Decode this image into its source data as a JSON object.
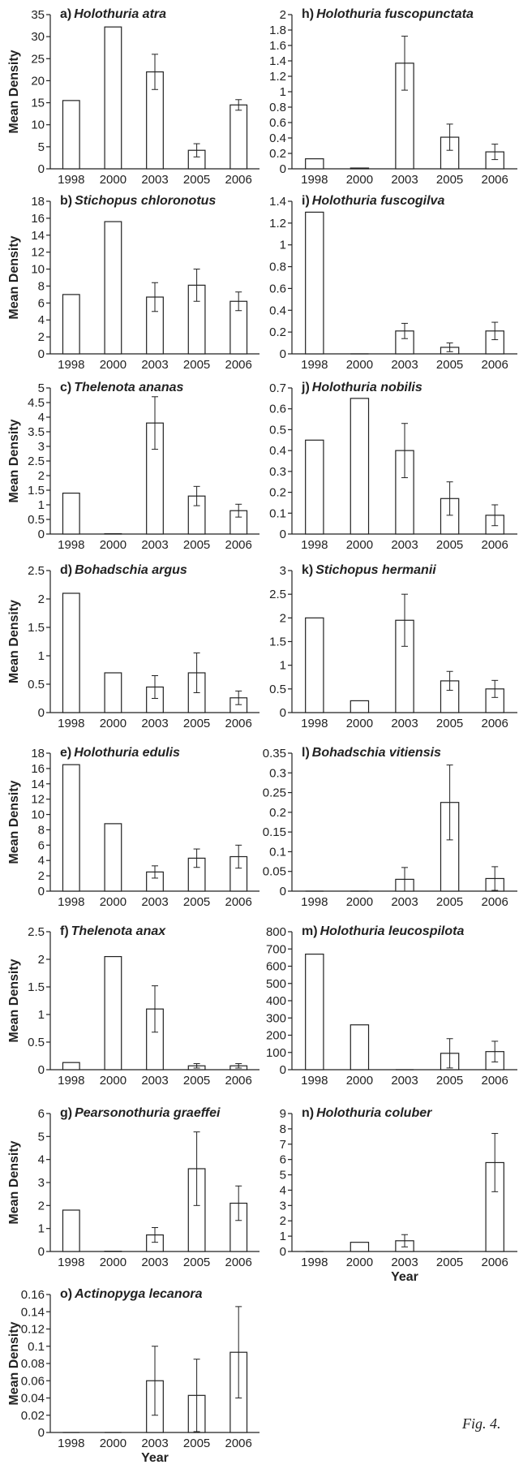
{
  "figure_caption": "Fig. 4.",
  "chart_data": [
    {
      "id": "a",
      "type": "bar",
      "panel_label": "a)",
      "title": "Holothuria atra",
      "ylabel": "Mean Density",
      "xlabel": "",
      "categories": [
        "1998",
        "2000",
        "2003",
        "2005",
        "2006"
      ],
      "values": [
        15.5,
        32.2,
        22.0,
        4.2,
        14.5
      ],
      "errors": [
        0,
        0,
        4.0,
        1.5,
        1.2
      ],
      "ylim": [
        0,
        35
      ],
      "yticks": [
        "0",
        "5",
        "10",
        "15",
        "20",
        "25",
        "30",
        "35"
      ]
    },
    {
      "id": "h",
      "type": "bar",
      "panel_label": "h)",
      "title": "Holothuria fuscopunctata",
      "ylabel": "",
      "xlabel": "",
      "categories": [
        "1998",
        "2000",
        "2003",
        "2005",
        "2006"
      ],
      "values": [
        0.13,
        0.01,
        1.37,
        0.41,
        0.22
      ],
      "errors": [
        0,
        0,
        0.35,
        0.17,
        0.1
      ],
      "ylim": [
        0,
        2
      ],
      "yticks": [
        "0",
        "0.2",
        "0.4",
        "0.6",
        "0.8",
        "1",
        "1.2",
        "1.4",
        "1.6",
        "1.8",
        "2"
      ]
    },
    {
      "id": "b",
      "type": "bar",
      "panel_label": "b)",
      "title": "Stichopus chloronotus",
      "ylabel": "Mean Density",
      "xlabel": "",
      "categories": [
        "1998",
        "2000",
        "2003",
        "2005",
        "2006"
      ],
      "values": [
        7.0,
        15.6,
        6.7,
        8.1,
        6.2
      ],
      "errors": [
        0,
        0,
        1.7,
        1.9,
        1.1
      ],
      "ylim": [
        0,
        18
      ],
      "yticks": [
        "0",
        "2",
        "4",
        "6",
        "8",
        "10",
        "12",
        "14",
        "16",
        "18"
      ]
    },
    {
      "id": "i",
      "type": "bar",
      "panel_label": "i)",
      "title": "Holothuria fuscogilva",
      "ylabel": "",
      "xlabel": "",
      "categories": [
        "1998",
        "2000",
        "2003",
        "2005",
        "2006"
      ],
      "values": [
        1.3,
        0.0,
        0.21,
        0.06,
        0.21
      ],
      "errors": [
        0,
        0,
        0.07,
        0.04,
        0.08
      ],
      "ylim": [
        0,
        1.4
      ],
      "yticks": [
        "0",
        "0.2",
        "0.4",
        "0.6",
        "0.8",
        "1",
        "1.2",
        "1.4"
      ]
    },
    {
      "id": "c",
      "type": "bar",
      "panel_label": "c)",
      "title": "Thelenota ananas",
      "ylabel": "Mean Density",
      "xlabel": "",
      "categories": [
        "1998",
        "2000",
        "2003",
        "2005",
        "2006"
      ],
      "values": [
        1.4,
        0.01,
        3.8,
        1.3,
        0.8
      ],
      "errors": [
        0,
        0,
        0.9,
        0.33,
        0.22
      ],
      "ylim": [
        0,
        5
      ],
      "yticks": [
        "0",
        "0.5",
        "1",
        "1.5",
        "2",
        "2.5",
        "3",
        "3.5",
        "4",
        "4.5",
        "5"
      ]
    },
    {
      "id": "j",
      "type": "bar",
      "panel_label": "j)",
      "title": "Holothuria nobilis",
      "ylabel": "",
      "xlabel": "",
      "categories": [
        "1998",
        "2000",
        "2003",
        "2005",
        "2006"
      ],
      "values": [
        0.45,
        0.65,
        0.4,
        0.17,
        0.09
      ],
      "errors": [
        0,
        0,
        0.13,
        0.08,
        0.05
      ],
      "ylim": [
        0,
        0.7
      ],
      "yticks": [
        "0",
        "0.1",
        "0.2",
        "0.3",
        "0.4",
        "0.5",
        "0.6",
        "0.7"
      ]
    },
    {
      "id": "d",
      "type": "bar",
      "panel_label": "d)",
      "title": "Bohadschia argus",
      "ylabel": "Mean Density",
      "xlabel": "",
      "categories": [
        "1998",
        "2000",
        "2003",
        "2005",
        "2006"
      ],
      "values": [
        2.1,
        0.7,
        0.45,
        0.7,
        0.26
      ],
      "errors": [
        0,
        0,
        0.2,
        0.35,
        0.12
      ],
      "ylim": [
        0,
        2.5
      ],
      "yticks": [
        "0",
        "0.5",
        "1",
        "1.5",
        "2",
        "2.5"
      ]
    },
    {
      "id": "k",
      "type": "bar",
      "panel_label": "k)",
      "title": "Stichopus hermanii",
      "ylabel": "",
      "xlabel": "",
      "categories": [
        "1998",
        "2000",
        "2003",
        "2005",
        "2006"
      ],
      "values": [
        2.0,
        0.25,
        1.95,
        0.67,
        0.5
      ],
      "errors": [
        0,
        0,
        0.55,
        0.2,
        0.18
      ],
      "ylim": [
        0,
        3
      ],
      "yticks": [
        "0",
        "0.5",
        "1",
        "1.5",
        "2",
        "2.5",
        "3"
      ]
    },
    {
      "id": "e",
      "type": "bar",
      "panel_label": "e)",
      "title": "Holothuria edulis",
      "ylabel": "Mean Density",
      "xlabel": "",
      "categories": [
        "1998",
        "2000",
        "2003",
        "2005",
        "2006"
      ],
      "values": [
        16.5,
        8.8,
        2.5,
        4.3,
        4.5
      ],
      "errors": [
        0,
        0,
        0.8,
        1.2,
        1.5
      ],
      "ylim": [
        0,
        18
      ],
      "yticks": [
        "0",
        "2",
        "4",
        "6",
        "8",
        "10",
        "12",
        "14",
        "16",
        "18"
      ]
    },
    {
      "id": "l",
      "type": "bar",
      "panel_label": "l)",
      "title": "Bohadschia vitiensis",
      "ylabel": "",
      "xlabel": "",
      "categories": [
        "1998",
        "2000",
        "2003",
        "2005",
        "2006"
      ],
      "values": [
        0,
        0,
        0.03,
        0.225,
        0.032
      ],
      "errors": [
        0,
        0,
        0.03,
        0.095,
        0.03
      ],
      "ylim": [
        0,
        0.35
      ],
      "yticks": [
        "0",
        "0.05",
        "0.1",
        "0.15",
        "0.2",
        "0.25",
        "0.3",
        "0.35"
      ]
    },
    {
      "id": "f",
      "type": "bar",
      "panel_label": "f)",
      "title": "Thelenota anax",
      "ylabel": "Mean Density",
      "xlabel": "",
      "categories": [
        "1998",
        "2000",
        "2003",
        "2005",
        "2006"
      ],
      "values": [
        0.13,
        2.05,
        1.1,
        0.07,
        0.07
      ],
      "errors": [
        0,
        0,
        0.42,
        0.04,
        0.04
      ],
      "ylim": [
        0,
        2.5
      ],
      "yticks": [
        "0",
        "0.5",
        "1",
        "1.5",
        "2",
        "2.5"
      ]
    },
    {
      "id": "m",
      "type": "bar",
      "panel_label": "m)",
      "title": "Holothuria leucospilota",
      "ylabel": "",
      "xlabel": "",
      "categories": [
        "1998",
        "2000",
        "2003",
        "2005",
        "2006"
      ],
      "values": [
        670,
        260,
        0,
        95,
        105
      ],
      "errors": [
        0,
        0,
        0,
        85,
        60
      ],
      "ylim": [
        0,
        800
      ],
      "yticks": [
        "0",
        "100",
        "200",
        "300",
        "400",
        "500",
        "600",
        "700",
        "800"
      ]
    },
    {
      "id": "g",
      "type": "bar",
      "panel_label": "g)",
      "title": "Pearsonothuria graeffei",
      "ylabel": "Mean Density",
      "xlabel": "",
      "categories": [
        "1998",
        "2000",
        "2003",
        "2005",
        "2006"
      ],
      "values": [
        1.8,
        0.01,
        0.72,
        3.6,
        2.1
      ],
      "errors": [
        0,
        0,
        0.32,
        1.6,
        0.75
      ],
      "ylim": [
        0,
        6
      ],
      "yticks": [
        "0",
        "1",
        "2",
        "3",
        "4",
        "5",
        "6"
      ]
    },
    {
      "id": "n",
      "type": "bar",
      "panel_label": "n)",
      "title": "Holothuria coluber",
      "ylabel": "",
      "xlabel": "Year",
      "categories": [
        "1998",
        "2000",
        "2003",
        "2005",
        "2006"
      ],
      "values": [
        0,
        0.6,
        0.7,
        0,
        5.8
      ],
      "errors": [
        0,
        0,
        0.4,
        0,
        1.9
      ],
      "ylim": [
        0,
        9
      ],
      "yticks": [
        "0",
        "1",
        "2",
        "3",
        "4",
        "5",
        "6",
        "7",
        "8",
        "9"
      ]
    },
    {
      "id": "o",
      "type": "bar",
      "panel_label": "o)",
      "title": "Actinopyga lecanora",
      "ylabel": "Mean Density",
      "xlabel": "Year",
      "categories": [
        "1998",
        "2000",
        "2003",
        "2005",
        "2006"
      ],
      "values": [
        0,
        0,
        0.06,
        0.043,
        0.093
      ],
      "errors": [
        0,
        0,
        0.04,
        0.042,
        0.053
      ],
      "ylim": [
        0,
        0.16
      ],
      "yticks": [
        "0",
        "0.02",
        "0.04",
        "0.06",
        "0.08",
        "0.1",
        "0.12",
        "0.14",
        "0.16"
      ]
    }
  ]
}
